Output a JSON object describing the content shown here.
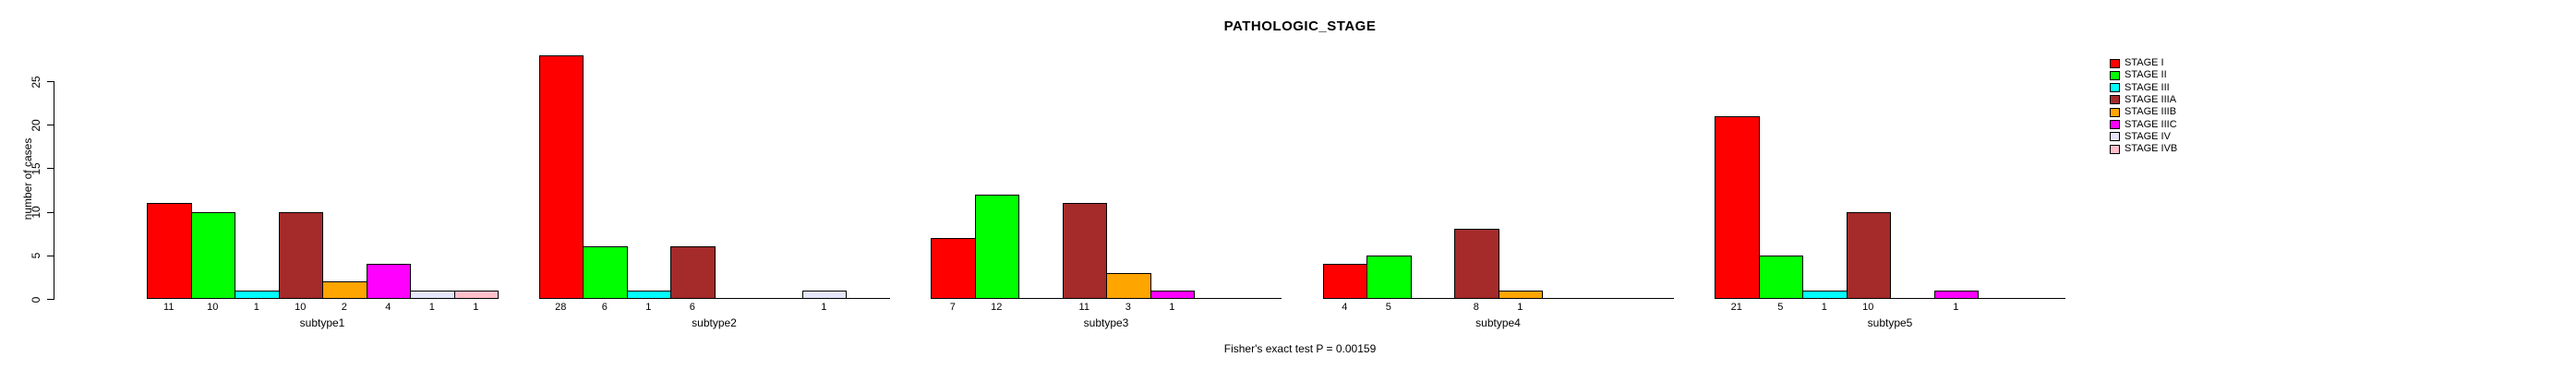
{
  "title": "PATHOLOGIC_STAGE",
  "footnote": "Fisher's exact test P = 0.00159",
  "chart_data": {
    "type": "bar",
    "title": "PATHOLOGIC_STAGE",
    "ylabel": "number of cases",
    "xlabel": "",
    "ylim": [
      0,
      25
    ],
    "yticks": [
      0,
      5,
      10,
      15,
      20,
      25
    ],
    "grid": false,
    "legend_position": "top-right",
    "annotation": "Fisher's exact test P = 0.00159",
    "bar_labels_shown": true,
    "categories": [
      "subtype1",
      "subtype2",
      "subtype3",
      "subtype4",
      "subtype5"
    ],
    "series": [
      {
        "name": "STAGE I",
        "color": "#FF0000",
        "values": [
          11,
          28,
          7,
          4,
          21
        ]
      },
      {
        "name": "STAGE II",
        "color": "#00FF00",
        "values": [
          10,
          6,
          12,
          5,
          5
        ]
      },
      {
        "name": "STAGE III",
        "color": "#00FFFF",
        "values": [
          1,
          1,
          0,
          0,
          1
        ]
      },
      {
        "name": "STAGE IIIA",
        "color": "#A52A2A",
        "values": [
          10,
          6,
          11,
          8,
          10
        ]
      },
      {
        "name": "STAGE IIIB",
        "color": "#FFA500",
        "values": [
          2,
          0,
          3,
          1,
          0
        ]
      },
      {
        "name": "STAGE IIIC",
        "color": "#FF00FF",
        "values": [
          4,
          0,
          1,
          0,
          1
        ]
      },
      {
        "name": "STAGE IV",
        "color": "#E6E6FA",
        "values": [
          1,
          1,
          0,
          0,
          0
        ]
      },
      {
        "name": "STAGE IVB",
        "color": "#FFC0CB",
        "values": [
          1,
          0,
          0,
          0,
          0
        ]
      }
    ]
  }
}
